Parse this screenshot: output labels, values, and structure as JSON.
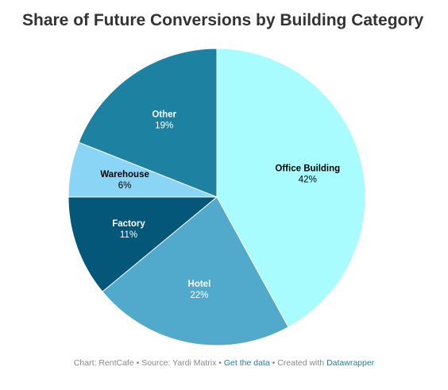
{
  "header": {
    "title": "Share of Future Conversions by Building Category"
  },
  "chart_data": {
    "type": "pie",
    "title": "Share of Future Conversions by Building Category",
    "slices": [
      {
        "label": "Office Building",
        "value": 42,
        "display": "42%",
        "color": "#a8fcfe",
        "text_color": "#000000"
      },
      {
        "label": "Hotel",
        "value": 22,
        "display": "22%",
        "color": "#51a9cc",
        "text_color": "#ffffff"
      },
      {
        "label": "Factory",
        "value": 11,
        "display": "11%",
        "color": "#045779",
        "text_color": "#ffffff"
      },
      {
        "label": "Warehouse",
        "value": 6,
        "display": "6%",
        "color": "#8ad5f6",
        "text_color": "#000000"
      },
      {
        "label": "Other",
        "value": 19,
        "display": "19%",
        "color": "#1d81a2",
        "text_color": "#ffffff"
      }
    ],
    "start": "12 o'clock",
    "direction": "clockwise"
  },
  "footer": {
    "chart_prefix": "Chart: ",
    "chart_by": "RentCafe",
    "sep1": " • ",
    "source_prefix": "Source: ",
    "source": "Yardi Matrix",
    "sep2": " • ",
    "get_data_label": "Get the data",
    "sep3": " • ",
    "created_prefix": "Created with ",
    "created_with": "Datawrapper"
  }
}
